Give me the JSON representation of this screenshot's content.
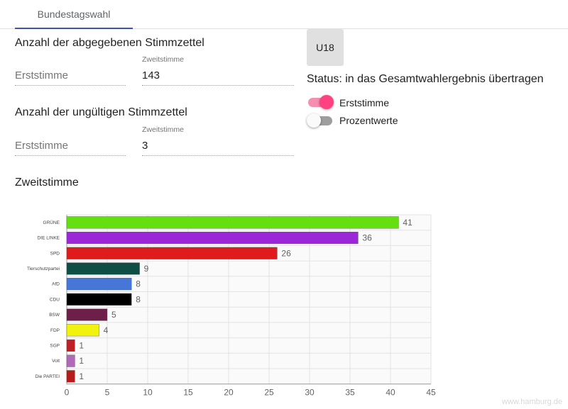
{
  "tabs": [
    {
      "label": "Bundestagswahl",
      "active": true
    }
  ],
  "stimmzettel": {
    "title": "Anzahl der abgegebenen Stimmzettel",
    "erst_placeholder": "Erststimme",
    "zweit_label": "Zweitstimme",
    "zweit_value": "143"
  },
  "ungueltig": {
    "title": "Anzahl der ungültigen Stimmzettel",
    "erst_placeholder": "Erststimme",
    "zweit_label": "Zweitstimme",
    "zweit_value": "3"
  },
  "u18_button": "U18",
  "status": "Status: in das Gesamtwahlergebnis übertragen",
  "toggles": [
    {
      "label": "Erststimme",
      "on": true,
      "color": "#ff4081"
    },
    {
      "label": "Prozentwerte",
      "on": false,
      "color": "#9e9e9e"
    }
  ],
  "chart_section_title": "Zweitstimme",
  "chart_data": {
    "type": "bar",
    "orientation": "horizontal",
    "categories": [
      "GRÜNE",
      "DIE LINKE",
      "SPD",
      "Tierschutzpartei",
      "AfD",
      "CDU",
      "BSW",
      "FDP",
      "SGP",
      "Volt",
      "Die PARTEI"
    ],
    "values": [
      41,
      36,
      26,
      9,
      8,
      8,
      5,
      4,
      1,
      1,
      1
    ],
    "colors": [
      "#64e011",
      "#9c27d8",
      "#e01b1b",
      "#0e4e46",
      "#4677d8",
      "#000000",
      "#6e1f49",
      "#f2f20f",
      "#bf1f26",
      "#b069b8",
      "#b71c1c"
    ],
    "xlim": [
      0,
      45
    ],
    "xticks": [
      0,
      5,
      10,
      15,
      20,
      25,
      30,
      35,
      40,
      45
    ],
    "grid": true,
    "data_labels": true
  },
  "watermark": "www.hamburg.de"
}
